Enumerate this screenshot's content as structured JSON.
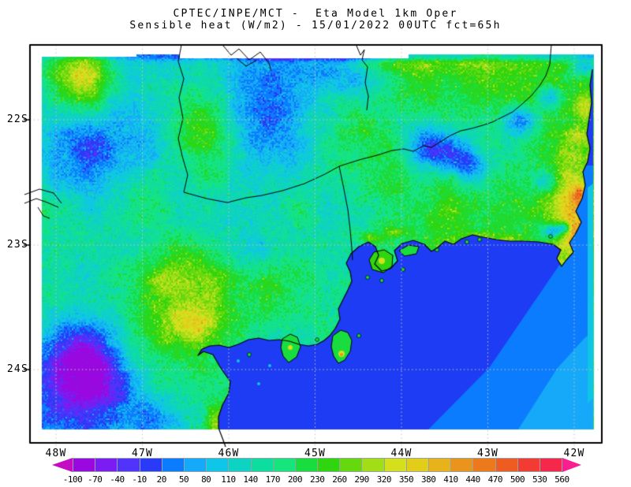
{
  "title": {
    "line1": "CPTEC/INPE/MCT -  Eta Model 1km Oper",
    "line2": "Sensible heat (W/m2) - 15/01/2022 00UTC fct=65h"
  },
  "map": {
    "x_tick_labels": [
      "48W",
      "47W",
      "46W",
      "45W",
      "44W",
      "43W",
      "42W"
    ],
    "y_tick_labels": [
      "22S",
      "23S",
      "24S"
    ]
  },
  "colorbar": {
    "tick_labels": [
      "-100",
      "-70",
      "-40",
      "-10",
      "20",
      "50",
      "80",
      "110",
      "140",
      "170",
      "200",
      "230",
      "260",
      "290",
      "320",
      "350",
      "380",
      "410",
      "440",
      "470",
      "500",
      "530",
      "560"
    ],
    "segment_colors": [
      "#9a08e0",
      "#7a1cf2",
      "#5133fb",
      "#2a3bf8",
      "#0b7cfe",
      "#15a9f9",
      "#0fc6e8",
      "#0ed2c2",
      "#0edda0",
      "#16e47d",
      "#19dd3f",
      "#2fd60f",
      "#66d90e",
      "#a2de16",
      "#d4df1e",
      "#e2cd1b",
      "#e8b21b",
      "#ea941d",
      "#ec7a1c",
      "#ef5c22",
      "#f23b33",
      "#f5284c"
    ],
    "under_arrow_color": "#c40cc4",
    "over_arrow_color": "#fb1e90"
  },
  "chart_data": {
    "type": "heatmap",
    "title": "CPTEC/INPE/MCT -  Eta Model 1km Oper",
    "subtitle": "Sensible heat (W/m2) - 15/01/2022 00UTC fct=65h",
    "institution": "CPTEC/INPE/MCT",
    "model": "Eta Model 1km Oper",
    "variable": "Sensible heat",
    "units": "W/m2",
    "valid_date": "15/01/2022 00UTC",
    "forecast": "fct=65h",
    "x_axis": {
      "ticks": [
        "48W",
        "47W",
        "46W",
        "45W",
        "44W",
        "43W",
        "42W"
      ],
      "meaning": "longitude (degrees West)"
    },
    "y_axis": {
      "ticks": [
        "22S",
        "23S",
        "24S"
      ],
      "meaning": "latitude (degrees South)"
    },
    "color_scale": {
      "levels": [
        -100,
        -70,
        -40,
        -10,
        20,
        50,
        80,
        110,
        140,
        170,
        200,
        230,
        260,
        290,
        320,
        350,
        380,
        410,
        440,
        470,
        500,
        530,
        560
      ],
      "colors": [
        "#9a08e0",
        "#7a1cf2",
        "#5133fb",
        "#2a3bf8",
        "#0b7cfe",
        "#15a9f9",
        "#0fc6e8",
        "#0ed2c2",
        "#0edda0",
        "#16e47d",
        "#19dd3f",
        "#2fd60f",
        "#66d90e",
        "#a2de16",
        "#d4df1e",
        "#e2cd1b",
        "#e8b21b",
        "#ea941d",
        "#ec7a1c",
        "#ef5c22",
        "#f23b33",
        "#f5284c"
      ],
      "under_color": "#c40cc4",
      "over_color": "#fb1e90",
      "orientation": "horizontal, below map"
    },
    "grid": "dashed light-gray lat/lon gridlines every 1 degree",
    "notable_features": [
      "Atlantic Ocean in the lower-right shown as uniform blue bands (~-10 to 80 W/m2), lighter toward the southeast corner",
      "Land mostly speckled greens/teals (~110-260 W/m2)",
      "Warm yellow/orange/red patches (~320-500 W/m2) in the west-center, upper-left and along the northeast coast",
      "Cool dark-blue spots (reservoirs/valleys, ~-10 to 50 W/m2) in the northeast quadrant and lower-left",
      "Black coastline and state-boundary overlays, white margin between data edge and frame"
    ]
  }
}
